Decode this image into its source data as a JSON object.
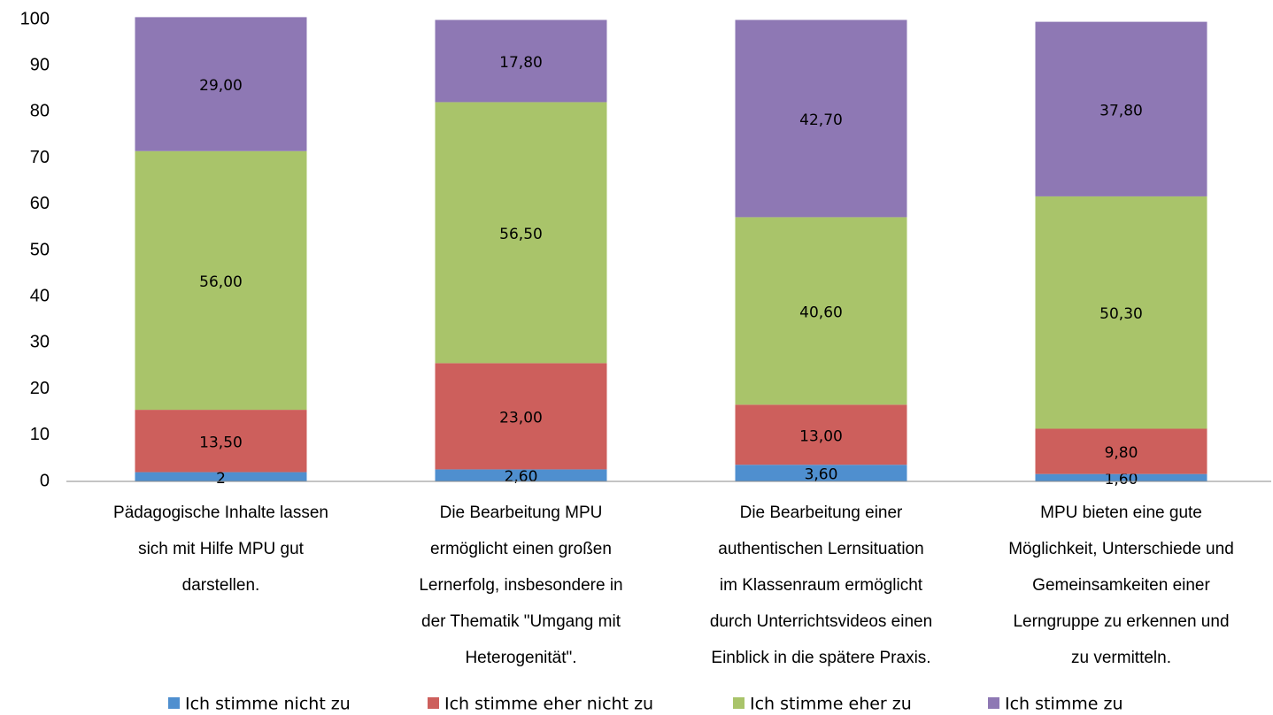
{
  "chart_data": {
    "type": "stacked_bar",
    "categories": [
      [
        "Pädagogische Inhalte lassen",
        "sich mit Hilfe MPU gut",
        "darstellen."
      ],
      [
        "Die Bearbeitung MPU",
        "ermöglicht einen großen",
        "Lernerfolg, insbesondere in",
        "der Thematik \"Umgang mit",
        "Heterogenität\"."
      ],
      [
        "Die Bearbeitung einer",
        "authentischen Lernsituation",
        "im Klassenraum ermöglicht",
        "durch Unterrichtsvideos einen",
        "Einblick in die spätere Praxis."
      ],
      [
        "MPU bieten eine gute",
        "Möglichkeit, Unterschiede und",
        "Gemeinsamkeiten einer",
        "Lerngruppe zu erkennen und",
        "zu vermitteln."
      ]
    ],
    "series": [
      {
        "name": "Ich stimme nicht zu",
        "color": "#4f8fcf",
        "values": [
          2,
          2.6,
          3.6,
          1.6
        ],
        "value_labels": [
          "2",
          "2,60",
          "3,60",
          "1,60"
        ]
      },
      {
        "name": "Ich stimme eher nicht zu",
        "color": "#cd5f5c",
        "values": [
          13.5,
          23,
          13,
          9.8
        ],
        "value_labels": [
          "13,50",
          "23,00",
          "13,00",
          "9,80"
        ]
      },
      {
        "name": "Ich stimme eher zu",
        "color": "#a9c46a",
        "values": [
          56,
          56.5,
          40.6,
          50.3
        ],
        "value_labels": [
          "56,00",
          "56,50",
          "40,60",
          "50,30"
        ]
      },
      {
        "name": "Ich stimme zu",
        "color": "#8e78b4",
        "values": [
          29,
          17.8,
          42.7,
          37.8
        ],
        "value_labels": [
          "29,00",
          "17,80",
          "42,70",
          "37,80"
        ]
      }
    ],
    "ylim": [
      0,
      100
    ],
    "yticks": [
      0,
      10,
      20,
      30,
      40,
      50,
      60,
      70,
      80,
      90,
      100
    ],
    "grid": false,
    "legend": "bottom"
  }
}
